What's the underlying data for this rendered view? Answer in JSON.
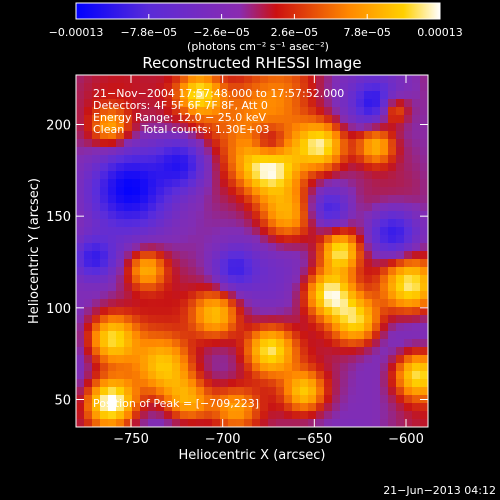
{
  "chart_data": {
    "type": "heatmap",
    "title": "Reconstructed RHESSI Image",
    "xlabel": "Heliocentric X (arcsec)",
    "ylabel": "Heliocentric Y (arcsec)",
    "xlim": [
      -780,
      -588
    ],
    "ylim": [
      35,
      227
    ],
    "x_ticks": [
      -750,
      -700,
      -650,
      -600
    ],
    "y_ticks": [
      50,
      100,
      150,
      200
    ],
    "x_tick_labels": [
      "−750",
      "−700",
      "−650",
      "−600"
    ],
    "y_tick_labels": [
      "50",
      "100",
      "150",
      "200"
    ],
    "colorbar": {
      "range": [
        -0.00013,
        0.00013
      ],
      "tick_values": [
        -0.00013,
        -7.8e-05,
        -2.6e-05,
        2.6e-05,
        7.8e-05,
        0.00013
      ],
      "tick_labels": [
        "−0.00013",
        "−7.8e−05",
        "−2.6e−05",
        "2.6e−05",
        "7.8e−05",
        "0.00013"
      ],
      "units_label": "(photons cm⁻² s⁻¹ asec⁻²)",
      "colors": [
        "#0000ff",
        "#8a2be2",
        "#cc1010",
        "#ff8800",
        "#ffd000",
        "#ffffff"
      ]
    },
    "annotations": [
      "21−Nov−2004 17:57:48.000 to 17:57:52.000",
      "Detectors: 4F 5F 6F 7F 8F, Att 0",
      "Energy Range: 12.0 − 25.0 keV",
      "Clean     Total counts: 1.30E+03"
    ],
    "peak_label": "Position of Peak = [−709,223]",
    "peak_position": [
      -709,
      223
    ]
  },
  "footer": {
    "timestamp": "21−Jun−2013 04:12"
  }
}
